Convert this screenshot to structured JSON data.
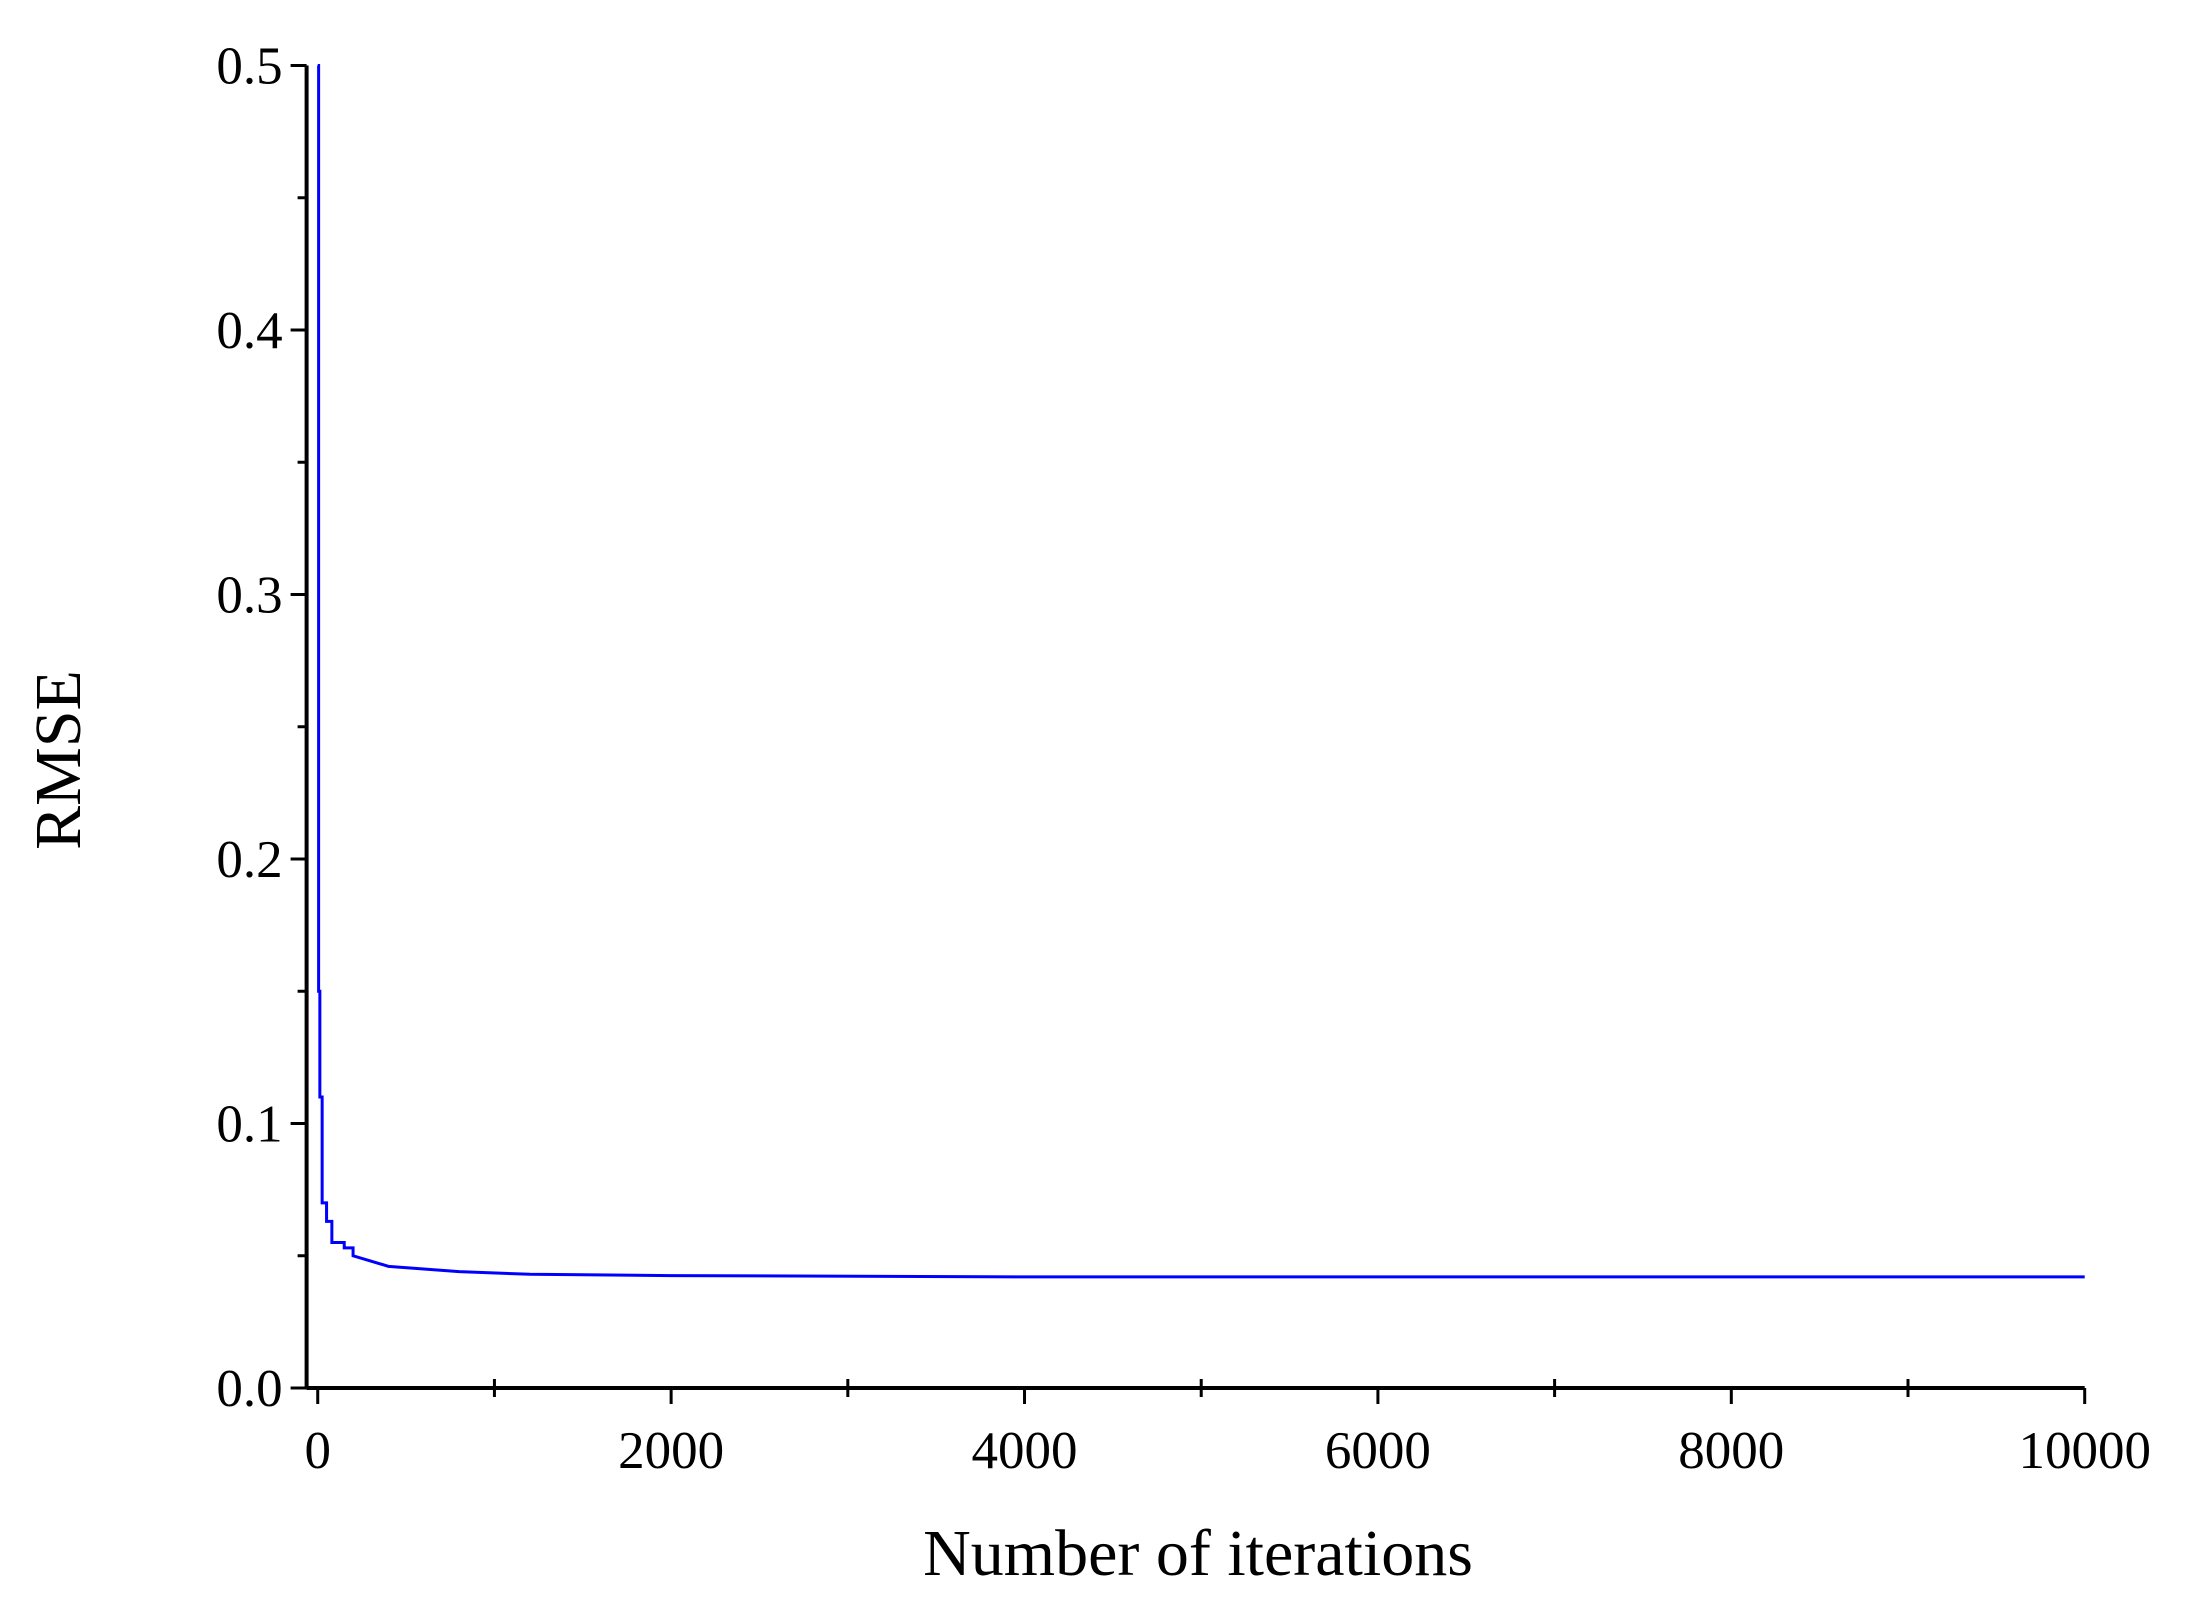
{
  "chart_data": {
    "type": "line",
    "xlabel": "Number of iterations",
    "ylabel": "RMSE",
    "xlim": [
      -63,
      10000
    ],
    "ylim": [
      0,
      0.5
    ],
    "xticks": [
      0,
      2000,
      4000,
      6000,
      8000,
      10000
    ],
    "xminorticks": [
      1000,
      3000,
      5000,
      7000,
      9000
    ],
    "yticks": [
      {
        "value": 0,
        "label": "0.0"
      },
      0.1,
      0.2,
      0.3,
      0.4,
      0.5
    ],
    "yminorticks": [
      0.05,
      0.15,
      0.25,
      0.35,
      0.45
    ],
    "grid": false,
    "series": [
      {
        "name": "RMSE",
        "color": "#0000ff",
        "x": [
          0,
          5,
          5,
          12,
          12,
          25,
          25,
          50,
          50,
          80,
          80,
          150,
          150,
          200,
          200,
          300,
          400,
          600,
          800,
          1200,
          2000,
          4000,
          10000
        ],
        "values": [
          0.5,
          0.5,
          0.15,
          0.15,
          0.11,
          0.11,
          0.07,
          0.07,
          0.063,
          0.063,
          0.055,
          0.055,
          0.053,
          0.053,
          0.05,
          0.048,
          0.046,
          0.045,
          0.044,
          0.043,
          0.0425,
          0.042,
          0.042
        ]
      }
    ]
  }
}
